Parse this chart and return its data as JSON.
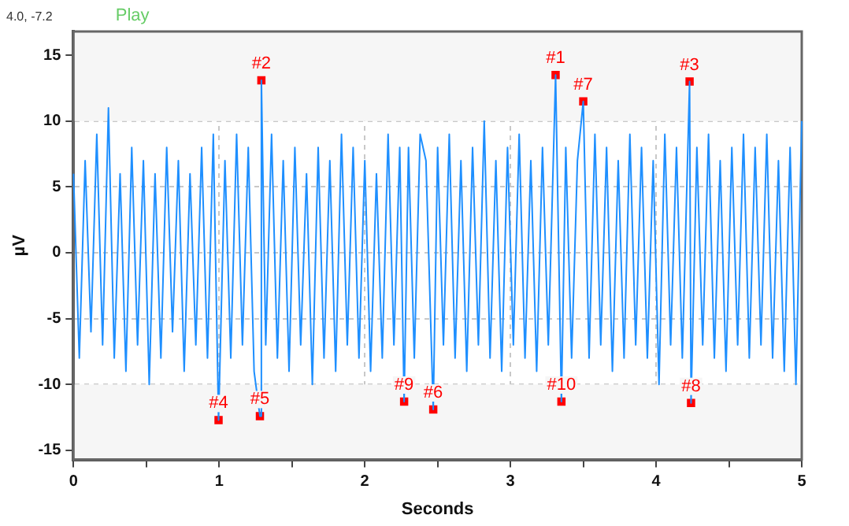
{
  "chart_data": {
    "type": "line",
    "xlabel": "Seconds",
    "ylabel": "µV",
    "xlim": [
      0,
      5
    ],
    "ylim": [
      -15.7,
      16.8
    ],
    "xticks": [
      0,
      {
        "value": 0.5,
        "label": null
      },
      1,
      {
        "value": 1.5,
        "label": null
      },
      2,
      {
        "value": 2.5,
        "label": null
      },
      3,
      {
        "value": 3.5,
        "label": null
      },
      4,
      {
        "value": 4.5,
        "label": null
      },
      5
    ],
    "yticks": [
      -15,
      -10,
      -5,
      0,
      5,
      10,
      15
    ],
    "grid": true,
    "legend": false,
    "bands": [
      {
        "axis": "y",
        "from": 10,
        "to": 16.8,
        "color": "#f6f6f6"
      },
      {
        "axis": "y",
        "from": -15.7,
        "to": -10,
        "color": "#f6f6f6"
      }
    ],
    "series": [
      {
        "color": "#1e8fff",
        "marker": "none",
        "x": [
          0,
          0.04,
          0.08,
          0.12,
          0.16,
          0.2,
          0.24,
          0.28,
          0.32,
          0.36,
          0.4,
          0.44,
          0.48,
          0.52,
          0.56,
          0.6,
          0.64,
          0.68,
          0.72,
          0.76,
          0.8,
          0.84,
          0.88,
          0.92,
          0.96,
          0.996,
          1.04,
          1.08,
          1.12,
          1.16,
          1.2,
          1.24,
          1.28,
          1.29,
          1.32,
          1.36,
          1.4,
          1.44,
          1.48,
          1.52,
          1.56,
          1.6,
          1.64,
          1.68,
          1.72,
          1.76,
          1.8,
          1.84,
          1.88,
          1.92,
          1.96,
          2,
          2.04,
          2.08,
          2.12,
          2.16,
          2.2,
          2.24,
          2.27,
          2.3,
          2.34,
          2.38,
          2.42,
          2.47,
          2.5,
          2.54,
          2.58,
          2.62,
          2.66,
          2.7,
          2.74,
          2.78,
          2.82,
          2.86,
          2.9,
          2.94,
          2.98,
          3.02,
          3.06,
          3.1,
          3.14,
          3.18,
          3.22,
          3.26,
          3.31,
          3.35,
          3.38,
          3.42,
          3.46,
          3.5,
          3.54,
          3.58,
          3.62,
          3.66,
          3.7,
          3.74,
          3.78,
          3.82,
          3.86,
          3.9,
          3.94,
          3.98,
          4.02,
          4.06,
          4.1,
          4.14,
          4.18,
          4.23,
          4.24,
          4.28,
          4.32,
          4.36,
          4.4,
          4.44,
          4.48,
          4.52,
          4.56,
          4.6,
          4.64,
          4.68,
          4.72,
          4.76,
          4.8,
          4.84,
          4.88,
          4.92,
          4.96,
          5
        ],
        "values": [
          6,
          -8,
          7,
          -6,
          9,
          -7,
          11,
          -8,
          6,
          -9,
          8,
          -7,
          7,
          -10,
          6,
          -8,
          8,
          -6,
          7,
          -9,
          6,
          -7,
          8,
          -8,
          9,
          -12.7,
          7,
          -8,
          9,
          -7,
          8,
          -9,
          -12.4,
          13.1,
          -7,
          9,
          -8,
          7,
          -9,
          8,
          -7,
          6,
          -10,
          8,
          -8,
          7,
          -9,
          9,
          -7,
          8,
          -8,
          7,
          -9,
          6,
          -8,
          9,
          -7,
          8,
          -11.3,
          8,
          -8,
          9,
          7,
          -11.9,
          8,
          -7,
          9,
          -8,
          7,
          -9,
          8,
          -7,
          10,
          -8,
          7,
          -9,
          8,
          -7,
          9,
          -8,
          7,
          -9,
          8,
          -7,
          13.5,
          -11.3,
          8,
          -8,
          7,
          11.5,
          -8,
          9,
          -7,
          8,
          -9,
          7,
          -8,
          9,
          -7,
          8,
          -8,
          7,
          -10,
          9,
          -7,
          8,
          -8,
          13,
          -11.4,
          8,
          -7,
          9,
          -8,
          7,
          -9,
          8,
          -7,
          9,
          -8,
          8,
          -7,
          9,
          -8,
          7,
          -9,
          8,
          -10,
          10
        ]
      },
      {
        "type": "scatter",
        "color": "#ff0000",
        "marker": "square",
        "x": [
          3.31,
          1.29,
          4.23,
          0.996,
          1.28,
          2.47,
          3.5,
          4.24,
          2.27,
          3.35
        ],
        "values": [
          13.5,
          13.1,
          13,
          -12.7,
          -12.4,
          -11.9,
          11.5,
          -11.4,
          -11.3,
          -11.3
        ]
      }
    ],
    "annotations": [
      "4.0, -7.2",
      "Play",
      {
        "text": "#1",
        "x": 3.31,
        "y": 13.5
      },
      {
        "text": "#2",
        "x": 1.29,
        "y": 13.1
      },
      {
        "text": "#3",
        "x": 4.23,
        "y": 13
      },
      {
        "text": "#4",
        "x": 0.996,
        "y": -12.7
      },
      {
        "text": "#5",
        "x": 1.28,
        "y": -12.4
      },
      {
        "text": "#6",
        "x": 2.47,
        "y": -11.9
      },
      {
        "text": "#7",
        "x": 3.5,
        "y": 11.5
      },
      {
        "text": "#8",
        "x": 4.24,
        "y": -11.4
      },
      {
        "text": "#9",
        "x": 2.27,
        "y": -11.3
      },
      {
        "text": "#10",
        "x": 3.35,
        "y": -11.3
      }
    ]
  }
}
